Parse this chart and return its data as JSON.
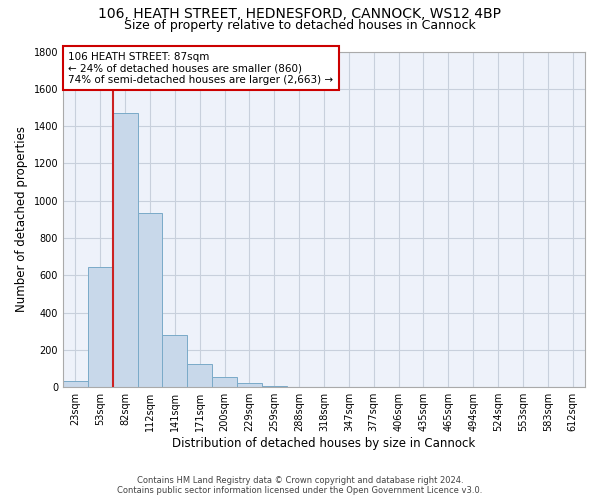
{
  "title_line1": "106, HEATH STREET, HEDNESFORD, CANNOCK, WS12 4BP",
  "title_line2": "Size of property relative to detached houses in Cannock",
  "xlabel": "Distribution of detached houses by size in Cannock",
  "ylabel": "Number of detached properties",
  "categories": [
    "23sqm",
    "53sqm",
    "82sqm",
    "112sqm",
    "141sqm",
    "171sqm",
    "200sqm",
    "229sqm",
    "259sqm",
    "288sqm",
    "318sqm",
    "347sqm",
    "377sqm",
    "406sqm",
    "435sqm",
    "465sqm",
    "494sqm",
    "524sqm",
    "553sqm",
    "583sqm",
    "612sqm"
  ],
  "values": [
    35,
    645,
    1470,
    935,
    280,
    125,
    55,
    20,
    8,
    2,
    0,
    0,
    0,
    0,
    0,
    0,
    0,
    0,
    0,
    0,
    0
  ],
  "bar_color": "#c8d8ea",
  "bar_edge_color": "#7aaac8",
  "vline_color": "#cc2222",
  "vline_x_index": 2,
  "annotation_text": "106 HEATH STREET: 87sqm\n← 24% of detached houses are smaller (860)\n74% of semi-detached houses are larger (2,663) →",
  "annotation_box_color": "#ffffff",
  "annotation_box_edge_color": "#cc0000",
  "ylim": [
    0,
    1800
  ],
  "yticks": [
    0,
    200,
    400,
    600,
    800,
    1000,
    1200,
    1400,
    1600,
    1800
  ],
  "grid_color": "#c8d0dc",
  "background_color": "#eef2fa",
  "footer_line1": "Contains HM Land Registry data © Crown copyright and database right 2024.",
  "footer_line2": "Contains public sector information licensed under the Open Government Licence v3.0.",
  "title_fontsize": 10,
  "subtitle_fontsize": 9,
  "tick_fontsize": 7,
  "ylabel_fontsize": 8.5,
  "xlabel_fontsize": 8.5,
  "annotation_fontsize": 7.5
}
